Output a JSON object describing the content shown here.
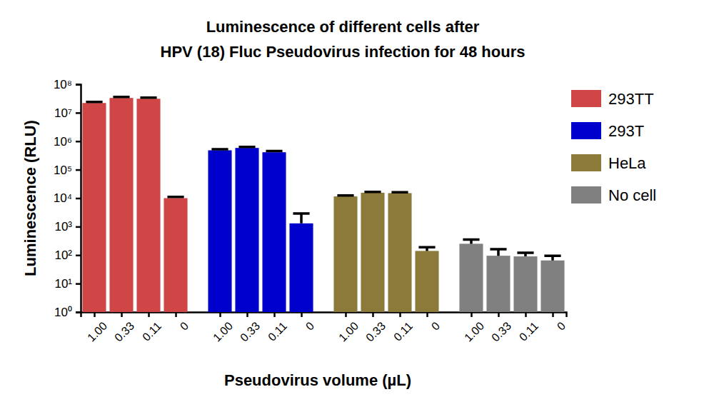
{
  "chart_data": {
    "type": "bar",
    "title": [
      "Luminescence of different cells after",
      "HPV (18) Fluc Pseudovirus infection for 48 hours"
    ],
    "x_label": "Pseudovirus volume (µL)",
    "y_label": "Luminescence (RLU)",
    "categories": [
      "1.00",
      "0.33",
      "0.11",
      "0"
    ],
    "series": [
      {
        "name": "293TT",
        "color": "#d04545",
        "values": [
          22000000,
          33000000,
          31000000,
          10000
        ],
        "errors": [
          2000000,
          3000000,
          3000000,
          1000
        ]
      },
      {
        "name": "293T",
        "color": "#0000cc",
        "values": [
          480000,
          580000,
          410000,
          1300
        ],
        "errors": [
          40000,
          50000,
          40000,
          1600
        ]
      },
      {
        "name": "HeLa",
        "color": "#8b7a3a",
        "values": [
          11500,
          15500,
          15000,
          140
        ],
        "errors": [
          1000,
          1000,
          1000,
          50
        ]
      },
      {
        "name": "No cell",
        "color": "#808080",
        "values": [
          250,
          95,
          90,
          65
        ],
        "errors": [
          100,
          65,
          30,
          30
        ]
      }
    ],
    "log": "y",
    "ylim": [
      1,
      100000000
    ],
    "yticks": [
      {
        "value": 1,
        "label": "10⁰"
      },
      {
        "value": 10,
        "label": "10¹"
      },
      {
        "value": 100,
        "label": "10²"
      },
      {
        "value": 1000,
        "label": "10³"
      },
      {
        "value": 10000,
        "label": "10⁴"
      },
      {
        "value": 100000,
        "label": "10⁵"
      },
      {
        "value": 1000000,
        "label": "10⁶"
      },
      {
        "value": 10000000,
        "label": "10⁷"
      },
      {
        "value": 100000000,
        "label": "10⁸"
      }
    ],
    "grid": false,
    "legend": "top-right"
  }
}
